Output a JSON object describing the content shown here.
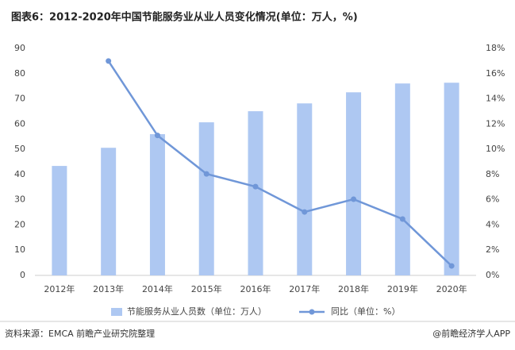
{
  "chart_data": {
    "type": "bar-line",
    "title": "图表6：2012-2020年中国节能服务业从业人员变化情况(单位：万人，%)",
    "categories": [
      "2012年",
      "2013年",
      "2014年",
      "2015年",
      "2016年",
      "2017年",
      "2018年",
      "2019年",
      "2020年"
    ],
    "series": [
      {
        "name": "节能服务从业人员数（单位：万人）",
        "type": "bar",
        "color": "#aec8f2",
        "values": [
          43.4,
          50.6,
          56,
          60.7,
          65.1,
          68.2,
          72.6,
          76.1,
          76.4
        ]
      },
      {
        "name": "同比（单位：%）",
        "type": "line",
        "axis": "y2",
        "color": "#7097d8",
        "values": [
          null,
          17,
          11.1,
          8.05,
          7.04,
          5.03,
          6.04,
          4.47,
          0.75
        ]
      }
    ],
    "ylim": [
      0,
      90
    ],
    "yticks": [
      0,
      10,
      20,
      30,
      40,
      50,
      60,
      70,
      80,
      90
    ],
    "y2lim": [
      0,
      18
    ],
    "y2ticks": [
      {
        "value": 0,
        "label": "0%"
      },
      {
        "value": 2,
        "label": "2%"
      },
      {
        "value": 4,
        "label": "4%"
      },
      {
        "value": 6,
        "label": "6%"
      },
      {
        "value": 8,
        "label": "8%"
      },
      {
        "value": 10,
        "label": "10%"
      },
      {
        "value": 12,
        "label": "12%"
      },
      {
        "value": 14,
        "label": "14%"
      },
      {
        "value": 16,
        "label": "16%"
      },
      {
        "value": 18,
        "label": "18%"
      }
    ],
    "source": "资料来源：EMCA 前瞻产业研究院整理",
    "credit": "@前瞻经济学人APP"
  }
}
